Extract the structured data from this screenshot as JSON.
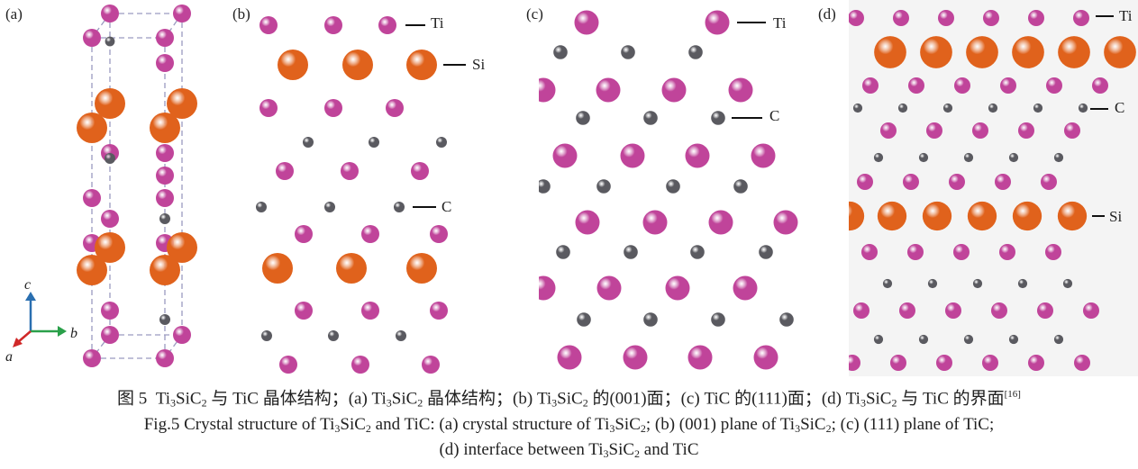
{
  "figure": {
    "panels": [
      {
        "id": "a",
        "label": "(a)"
      },
      {
        "id": "b",
        "label": "(b)",
        "atom_labels": {
          "ti": "Ti",
          "si": "Si",
          "c": "C"
        }
      },
      {
        "id": "c",
        "label": "(c)",
        "atom_labels": {
          "ti": "Ti",
          "c": "C"
        }
      },
      {
        "id": "d",
        "label": "(d)",
        "atom_labels": {
          "ti": "Ti",
          "c": "C",
          "si": "Si"
        }
      }
    ],
    "axes": {
      "c": "c",
      "b": "b",
      "a": "a"
    },
    "colors": {
      "ti": "#c0449a",
      "si": "#e0621c",
      "c": "#5a5a60",
      "axis_c": "#2a6fb0",
      "axis_b": "#2aa04a",
      "axis_a": "#d02828",
      "cell_edge": "#9a9ac0",
      "panel_d_bg": "#f4f4f4"
    }
  },
  "caption": {
    "zh": {
      "fig": "图 5",
      "ti": "Ti",
      "ti_sub": "3",
      "sic": "SiC",
      "sic_sub": "2",
      "p1": " 与 TiC 晶体结构；(a) ",
      "p2": " 晶体结构；(b) ",
      "p3": " 的(001)面；(c) TiC 的(111)面；(d) ",
      "p4": " 与 TiC 的界面",
      "ref": "[16]"
    },
    "en": {
      "l1a": "Fig.5  Crystal structure of ",
      "l1b": " and TiC: (a) crystal structure of ",
      "l1c": "; (b) (001) plane of ",
      "l1d": "; (c) (111) plane of TiC;",
      "l2a": "(d) interface between ",
      "l2b": " and TiC"
    }
  }
}
